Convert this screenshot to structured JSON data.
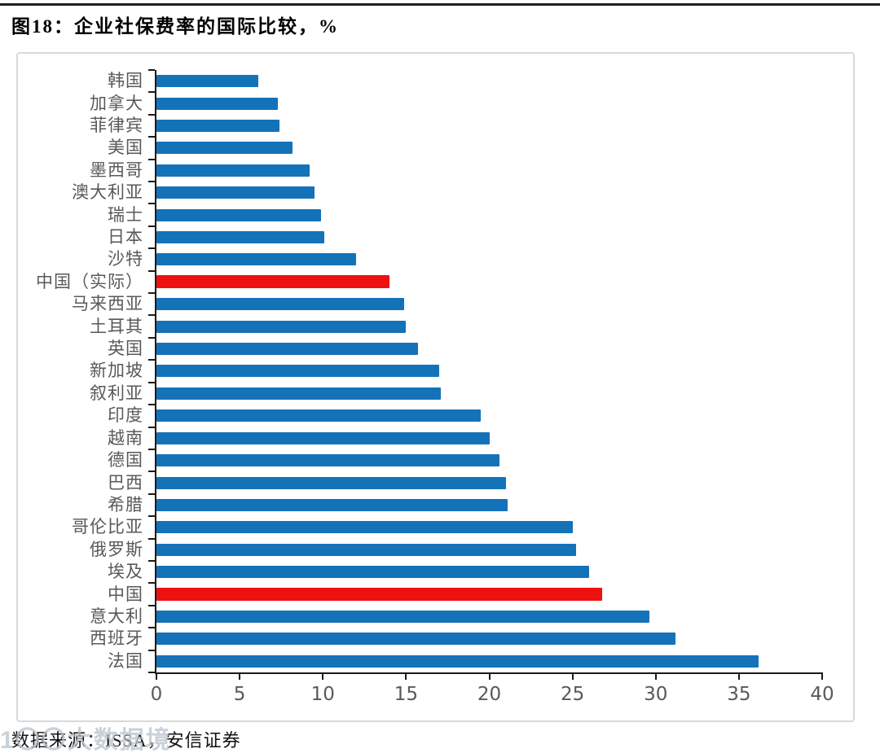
{
  "header": {
    "title": "图18：企业社保费率的国际比较，%"
  },
  "footer": {
    "source": "数据来源：ISSA，安信证券",
    "watermark": "1〇〇大数据境"
  },
  "colors": {
    "bar_blue": "#1472b9",
    "bar_red": "#ee1111",
    "axis": "#1a1a1a",
    "tick_label": "#595959",
    "panel_border": "#d9d9d9"
  },
  "chart_data": {
    "type": "bar",
    "orientation": "horizontal",
    "title": "企业社保费率的国际比较，%",
    "xlabel": "",
    "ylabel": "",
    "xlim": [
      0,
      40
    ],
    "xticks": [
      0,
      5,
      10,
      15,
      20,
      25,
      30,
      35,
      40
    ],
    "grid": false,
    "legend": "none",
    "categories": [
      "韩国",
      "加拿大",
      "菲律宾",
      "美国",
      "墨西哥",
      "澳大利亚",
      "瑞士",
      "日本",
      "沙特",
      "中国（实际）",
      "马来西亚",
      "土耳其",
      "英国",
      "新加坡",
      "叙利亚",
      "印度",
      "越南",
      "德国",
      "巴西",
      "希腊",
      "哥伦比亚",
      "俄罗斯",
      "埃及",
      "中国",
      "意大利",
      "西班牙",
      "法国"
    ],
    "values": [
      6.1,
      7.3,
      7.4,
      8.2,
      9.2,
      9.5,
      9.9,
      10.1,
      12.0,
      14.0,
      14.9,
      15.0,
      15.7,
      17.0,
      17.1,
      19.5,
      20.0,
      20.6,
      21.0,
      21.1,
      25.0,
      25.2,
      26.0,
      26.8,
      29.6,
      31.2,
      36.2
    ],
    "highlight_indices": [
      9,
      23
    ],
    "highlight_note": "中国（实际）与中国两行为红色高亮，其余为蓝色"
  }
}
